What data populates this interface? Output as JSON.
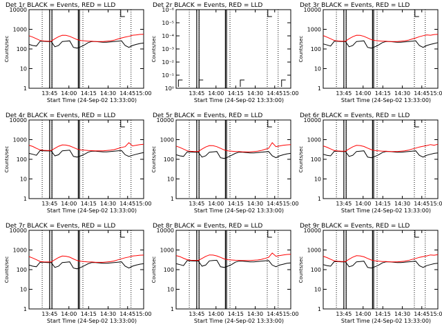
{
  "chart_data": [
    {
      "type": "line",
      "title": "Det 1r BLACK = Events, RED = LLD",
      "xlabel": "Start Time (24-Sep-02 13:33:00)",
      "ylabel": "Counts/sec",
      "ylog": true,
      "ylim": [
        1,
        10000
      ],
      "y_tick_labels": [
        "1",
        "10",
        "100",
        "1000",
        "10000"
      ],
      "x_tick_labels": [
        "13:45",
        "14:00",
        "14:15",
        "14:30",
        "14:45",
        "15:00"
      ],
      "series": [
        {
          "name": "BLACK = Events",
          "color": "#000000",
          "values": [
            170,
            150,
            140,
            250,
            245,
            240,
            240,
            130,
            150,
            240,
            250,
            260,
            120,
            110,
            130,
            160,
            210,
            240,
            240,
            230,
            220,
            220,
            230,
            240,
            250,
            260,
            150,
            120,
            150,
            170,
            190,
            200
          ]
        },
        {
          "name": "RED = LLD",
          "color": "#ff0000",
          "values": [
            470,
            400,
            330,
            270,
            255,
            250,
            250,
            330,
            420,
            500,
            490,
            440,
            360,
            300,
            270,
            260,
            250,
            250,
            240,
            240,
            240,
            250,
            260,
            280,
            320,
            360,
            400,
            440,
            500,
            520,
            550,
            560
          ]
        }
      ]
    },
    {
      "type": "line",
      "title": "Det 2r BLACK = Events, RED = LLD",
      "xlabel": "Start Time (24-Sep-02 13:33:00)",
      "ylabel": "Counts/sec",
      "ylog": true,
      "ylim": [
        1,
        1e-06
      ],
      "y_tick_labels": [
        "10⁰",
        "10⁻¹",
        "10⁻²",
        "10⁻³",
        "10⁻⁴",
        "10⁻⁵",
        "10⁻⁶"
      ],
      "x_tick_labels": [
        "13:45",
        "14:00",
        "14:15",
        "14:30",
        "14:45",
        "15:00"
      ],
      "series": []
    },
    {
      "type": "line",
      "title": "Det 3r BLACK = Events, RED = LLD",
      "xlabel": "Start Time (24-Sep-02 13:33:00)",
      "ylabel": "Counts/sec",
      "ylog": true,
      "ylim": [
        1,
        10000
      ],
      "y_tick_labels": [
        "1",
        "10",
        "100",
        "1000",
        "10000"
      ],
      "x_tick_labels": [
        "13:45",
        "14:00",
        "14:15",
        "14:30",
        "14:45",
        "15:00"
      ],
      "series": [
        {
          "name": "BLACK = Events",
          "color": "#000000",
          "values": [
            180,
            160,
            140,
            250,
            245,
            240,
            240,
            130,
            150,
            240,
            250,
            260,
            120,
            110,
            130,
            160,
            210,
            240,
            240,
            230,
            220,
            220,
            230,
            240,
            250,
            260,
            150,
            120,
            150,
            170,
            190,
            210
          ]
        },
        {
          "name": "RED = LLD",
          "color": "#ff0000",
          "values": [
            480,
            400,
            330,
            270,
            255,
            250,
            250,
            330,
            420,
            500,
            490,
            440,
            360,
            300,
            270,
            260,
            250,
            250,
            240,
            240,
            240,
            250,
            260,
            280,
            320,
            360,
            420,
            470,
            520,
            500,
            540,
            560
          ]
        }
      ]
    },
    {
      "type": "line",
      "title": "Det 4r BLACK = Events, RED = LLD",
      "xlabel": "Start Time (24-Sep-02 13:33:00)",
      "ylabel": "Counts/sec",
      "ylog": true,
      "ylim": [
        1,
        10000
      ],
      "y_tick_labels": [
        "1",
        "10",
        "100",
        "1000",
        "10000"
      ],
      "x_tick_labels": [
        "13:45",
        "14:00",
        "14:15",
        "14:30",
        "14:45",
        "15:00"
      ],
      "series": [
        {
          "name": "BLACK = Events",
          "color": "#000000",
          "values": [
            200,
            180,
            160,
            280,
            270,
            265,
            265,
            150,
            170,
            270,
            280,
            290,
            140,
            130,
            150,
            180,
            230,
            260,
            260,
            250,
            240,
            240,
            250,
            260,
            270,
            280,
            170,
            140,
            160,
            180,
            200,
            220
          ]
        },
        {
          "name": "RED = LLD",
          "color": "#ff0000",
          "values": [
            520,
            450,
            360,
            300,
            285,
            280,
            280,
            360,
            460,
            540,
            530,
            480,
            400,
            330,
            300,
            290,
            280,
            275,
            270,
            270,
            270,
            280,
            290,
            310,
            350,
            400,
            440,
            700,
            480,
            520,
            560,
            580
          ]
        }
      ]
    },
    {
      "type": "line",
      "title": "Det 5r BLACK = Events, RED = LLD",
      "xlabel": "Start Time (24-Sep-02 13:33:00)",
      "ylabel": "Counts/sec",
      "ylog": true,
      "ylim": [
        1,
        10000
      ],
      "y_tick_labels": [
        "1",
        "10",
        "100",
        "1000",
        "10000"
      ],
      "x_tick_labels": [
        "13:45",
        "14:00",
        "14:15",
        "14:30",
        "14:45",
        "15:00"
      ],
      "series": [
        {
          "name": "BLACK = Events",
          "color": "#000000",
          "values": [
            170,
            150,
            140,
            240,
            235,
            230,
            230,
            130,
            150,
            230,
            240,
            250,
            120,
            110,
            130,
            160,
            200,
            230,
            230,
            220,
            210,
            210,
            220,
            230,
            240,
            250,
            150,
            120,
            150,
            170,
            190,
            200
          ]
        },
        {
          "name": "RED = LLD",
          "color": "#ff0000",
          "values": [
            470,
            400,
            330,
            270,
            255,
            250,
            250,
            330,
            420,
            500,
            490,
            440,
            360,
            300,
            270,
            260,
            250,
            250,
            240,
            240,
            240,
            250,
            260,
            280,
            320,
            360,
            700,
            440,
            480,
            520,
            540,
            560
          ]
        }
      ]
    },
    {
      "type": "line",
      "title": "Det 6r BLACK = Events, RED = LLD",
      "xlabel": "Start Time (24-Sep-02 13:33:00)",
      "ylabel": "Counts/sec",
      "ylog": true,
      "ylim": [
        1,
        10000
      ],
      "y_tick_labels": [
        "1",
        "10",
        "100",
        "1000",
        "10000"
      ],
      "x_tick_labels": [
        "13:45",
        "14:00",
        "14:15",
        "14:30",
        "14:45",
        "15:00"
      ],
      "series": [
        {
          "name": "BLACK = Events",
          "color": "#000000",
          "values": [
            180,
            160,
            150,
            260,
            255,
            250,
            250,
            140,
            160,
            250,
            260,
            270,
            130,
            120,
            140,
            170,
            220,
            250,
            250,
            240,
            230,
            230,
            240,
            250,
            260,
            270,
            160,
            130,
            160,
            180,
            200,
            210
          ]
        },
        {
          "name": "RED = LLD",
          "color": "#ff0000",
          "values": [
            480,
            410,
            340,
            280,
            265,
            260,
            260,
            340,
            430,
            510,
            500,
            450,
            370,
            310,
            280,
            270,
            260,
            260,
            250,
            250,
            250,
            260,
            270,
            290,
            330,
            370,
            420,
            460,
            500,
            560,
            520,
            580
          ]
        }
      ]
    },
    {
      "type": "line",
      "title": "Det 7r BLACK = Events, RED = LLD",
      "xlabel": "Start Time (24-Sep-02 13:33:00)",
      "ylabel": "Counts/sec",
      "ylog": true,
      "ylim": [
        1,
        10000
      ],
      "y_tick_labels": [
        "1",
        "10",
        "100",
        "1000",
        "10000"
      ],
      "x_tick_labels": [
        "13:45",
        "14:00",
        "14:15",
        "14:30",
        "14:45",
        "15:00"
      ],
      "series": [
        {
          "name": "BLACK = Events",
          "color": "#000000",
          "values": [
            170,
            150,
            140,
            240,
            235,
            230,
            230,
            130,
            150,
            230,
            240,
            250,
            120,
            110,
            130,
            160,
            200,
            230,
            230,
            220,
            210,
            210,
            220,
            230,
            240,
            250,
            150,
            120,
            150,
            170,
            190,
            200
          ]
        },
        {
          "name": "RED = LLD",
          "color": "#ff0000",
          "values": [
            460,
            390,
            320,
            260,
            250,
            245,
            245,
            320,
            410,
            490,
            480,
            430,
            350,
            290,
            265,
            255,
            245,
            245,
            235,
            235,
            235,
            245,
            255,
            275,
            315,
            355,
            400,
            440,
            490,
            510,
            540,
            550
          ]
        }
      ]
    },
    {
      "type": "line",
      "title": "Det 8r BLACK = Events, RED = LLD",
      "xlabel": "Start Time (24-Sep-02 13:33:00)",
      "ylabel": "Counts/sec",
      "ylog": true,
      "ylim": [
        1,
        10000
      ],
      "y_tick_labels": [
        "1",
        "10",
        "100",
        "1000",
        "10000"
      ],
      "x_tick_labels": [
        "13:45",
        "14:00",
        "14:15",
        "14:30",
        "14:45",
        "15:00"
      ],
      "series": [
        {
          "name": "BLACK = Events",
          "color": "#000000",
          "values": [
            200,
            180,
            160,
            290,
            280,
            275,
            275,
            150,
            170,
            280,
            290,
            300,
            140,
            130,
            150,
            180,
            240,
            270,
            270,
            260,
            250,
            250,
            260,
            270,
            280,
            290,
            170,
            140,
            170,
            190,
            210,
            220
          ]
        },
        {
          "name": "RED = LLD",
          "color": "#ff0000",
          "values": [
            520,
            460,
            380,
            320,
            300,
            295,
            295,
            370,
            470,
            560,
            550,
            500,
            420,
            350,
            320,
            310,
            300,
            295,
            290,
            290,
            290,
            300,
            310,
            330,
            370,
            420,
            700,
            480,
            520,
            560,
            590,
            600
          ]
        }
      ]
    },
    {
      "type": "line",
      "title": "Det 9r BLACK = Events, RED = LLD",
      "xlabel": "Start Time (24-Sep-02 13:33:00)",
      "ylabel": "Counts/sec",
      "ylog": true,
      "ylim": [
        1,
        10000
      ],
      "y_tick_labels": [
        "1",
        "10",
        "100",
        "1000",
        "10000"
      ],
      "x_tick_labels": [
        "13:45",
        "14:00",
        "14:15",
        "14:30",
        "14:45",
        "15:00"
      ],
      "series": [
        {
          "name": "BLACK = Events",
          "color": "#000000",
          "values": [
            180,
            160,
            150,
            260,
            255,
            250,
            250,
            140,
            160,
            250,
            260,
            270,
            130,
            120,
            140,
            170,
            220,
            250,
            250,
            240,
            230,
            230,
            240,
            250,
            260,
            270,
            160,
            130,
            160,
            180,
            200,
            210
          ]
        },
        {
          "name": "RED = LLD",
          "color": "#ff0000",
          "values": [
            480,
            410,
            340,
            280,
            265,
            260,
            260,
            340,
            430,
            510,
            500,
            450,
            370,
            310,
            280,
            270,
            260,
            260,
            250,
            250,
            250,
            260,
            270,
            290,
            330,
            370,
            420,
            460,
            500,
            560,
            540,
            580
          ]
        }
      ]
    }
  ]
}
